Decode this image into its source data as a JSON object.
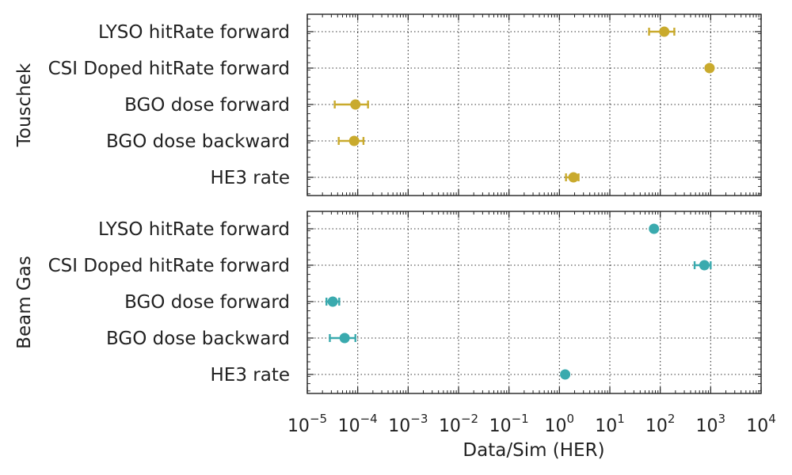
{
  "chart_data": {
    "type": "scatter",
    "xlabel": "Data/Sim (HER)",
    "xscale": "log",
    "xlim": [
      1e-05,
      10000
    ],
    "x_tick_labels": [
      {
        "base": "10",
        "exp": "−5"
      },
      {
        "base": "10",
        "exp": "−4"
      },
      {
        "base": "10",
        "exp": "−3"
      },
      {
        "base": "10",
        "exp": "−2"
      },
      {
        "base": "10",
        "exp": "−1"
      },
      {
        "base": "10",
        "exp": "0"
      },
      {
        "base": "10",
        "exp": "1"
      },
      {
        "base": "10",
        "exp": "2"
      },
      {
        "base": "10",
        "exp": "3"
      },
      {
        "base": "10",
        "exp": "4"
      }
    ],
    "categories": [
      "LYSO hitRate forward",
      "CSI Doped hitRate forward",
      "BGO dose forward",
      "BGO dose backward",
      "HE3 rate"
    ],
    "grid": true,
    "panels": [
      {
        "ylabel": "Touschek",
        "color": "#c9aa2d",
        "points": [
          {
            "category": "LYSO hitRate forward",
            "x": 120,
            "xerr_low": 60,
            "xerr_high": 190
          },
          {
            "category": "CSI Doped hitRate forward",
            "x": 950,
            "xerr_low": 950,
            "xerr_high": 950
          },
          {
            "category": "BGO dose forward",
            "x": 9e-05,
            "xerr_low": 3.5e-05,
            "xerr_high": 0.00016
          },
          {
            "category": "BGO dose backward",
            "x": 8.5e-05,
            "xerr_low": 4.2e-05,
            "xerr_high": 0.00013
          },
          {
            "category": "HE3 rate",
            "x": 1.9,
            "xerr_low": 1.35,
            "xerr_high": 2.4
          }
        ]
      },
      {
        "ylabel": "Beam Gas",
        "color": "#3aaaae",
        "points": [
          {
            "category": "LYSO hitRate forward",
            "x": 75,
            "xerr_low": 75,
            "xerr_high": 75
          },
          {
            "category": "CSI Doped hitRate forward",
            "x": 750,
            "xerr_low": 480,
            "xerr_high": 1000
          },
          {
            "category": "BGO dose forward",
            "x": 3.2e-05,
            "xerr_low": 2.4e-05,
            "xerr_high": 4.3e-05
          },
          {
            "category": "BGO dose backward",
            "x": 5.5e-05,
            "xerr_low": 2.8e-05,
            "xerr_high": 9e-05
          },
          {
            "category": "HE3 rate",
            "x": 1.3,
            "xerr_low": 1.3,
            "xerr_high": 1.3
          }
        ]
      }
    ]
  }
}
